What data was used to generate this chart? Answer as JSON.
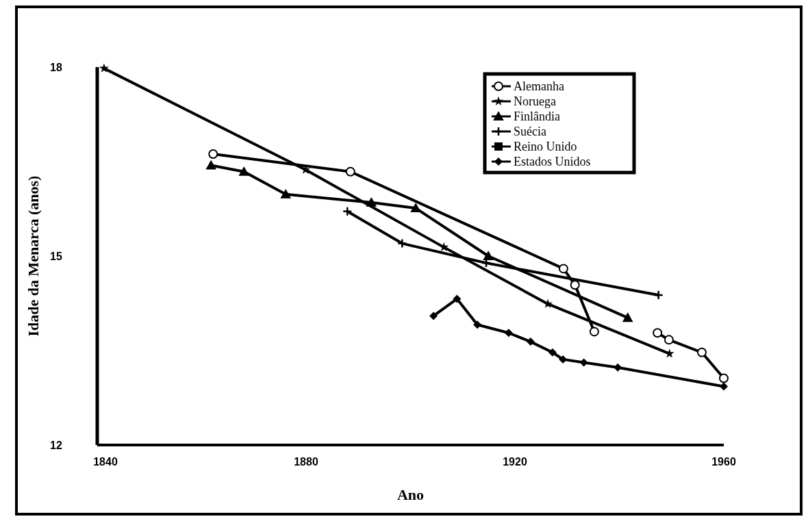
{
  "chart_data": {
    "type": "line",
    "xlabel": "Ano",
    "ylabel": "Idade da Menarca (anos)",
    "xlim": [
      1840,
      1960
    ],
    "xticks": [
      1840,
      1880,
      1920,
      1960
    ],
    "ylim": [
      12,
      18
    ],
    "yticks": [
      12,
      15,
      18
    ],
    "grid": false,
    "legend": "top right",
    "line_style": "solid",
    "series": [
      {
        "name": "Alemanha",
        "color": "#000000",
        "marker": "circle",
        "x": [
          1862.2,
          1888.5,
          1929.3,
          1931.5,
          1935.2,
          1940,
          1947.3,
          1949.5,
          1955.8,
          1960
        ],
        "values": [
          16.62,
          16.34,
          14.8,
          14.54,
          13.8,
          null,
          13.78,
          13.67,
          13.47,
          13.06
        ]
      },
      {
        "name": "Noruega",
        "color": "#000000",
        "marker": "star",
        "x": [
          1841.3,
          1879.9,
          1906.4,
          1926.3,
          1949.6
        ],
        "values": [
          17.98,
          16.37,
          15.14,
          14.24,
          13.45
        ]
      },
      {
        "name": "Finlândia",
        "color": "#000000",
        "marker": "triangle",
        "x": [
          1861.8,
          1868.1,
          1876.1,
          1892.5,
          1901,
          1914.9,
          1941.6
        ],
        "values": [
          16.44,
          16.34,
          15.98,
          15.85,
          15.76,
          15.0,
          14.02
        ]
      },
      {
        "name": "Suécia",
        "color": "#000000",
        "marker": "cross",
        "x": [
          1887.9,
          1898.4,
          1914.5,
          1947.5
        ],
        "values": [
          15.71,
          15.2,
          14.89,
          14.38
        ]
      },
      {
        "name": "Reino Unido",
        "color": "#000000",
        "marker": "square"
      },
      {
        "name": "Estados Unidos",
        "color": "#000000",
        "marker": "diamond",
        "x": [
          1904.4,
          1908.9,
          1912.8,
          1918.8,
          1923,
          1927.2,
          1929.2,
          1933.2,
          1939.7,
          1960
        ],
        "values": [
          14.05,
          14.32,
          13.91,
          13.78,
          13.64,
          13.47,
          13.36,
          13.31,
          13.23,
          12.93
        ]
      }
    ]
  }
}
